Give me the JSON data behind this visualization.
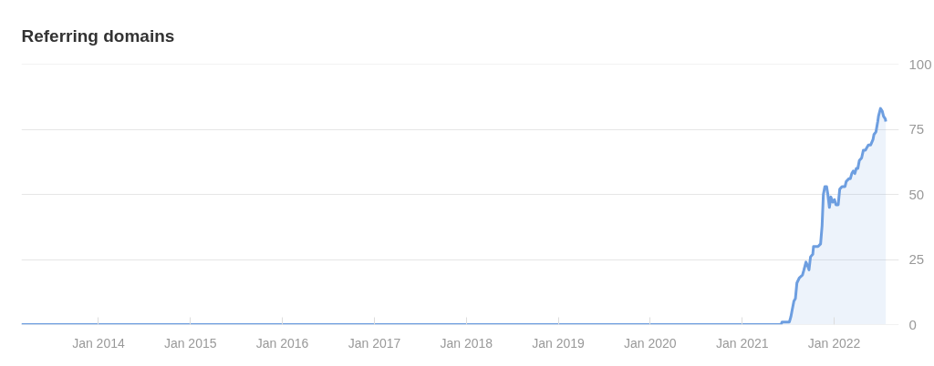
{
  "chart_data": {
    "type": "area",
    "title": "Referring domains",
    "x": [
      "2013-03-01",
      "2021-06-04",
      "2021-06-08",
      "2021-07-07",
      "2021-07-13",
      "2021-07-19",
      "2021-07-25",
      "2021-07-31",
      "2021-08-06",
      "2021-08-16",
      "2021-08-28",
      "2021-09-03",
      "2021-09-11",
      "2021-09-20",
      "2021-09-23",
      "2021-09-29",
      "2021-10-08",
      "2021-10-11",
      "2021-10-29",
      "2021-11-08",
      "2021-11-14",
      "2021-11-19",
      "2021-11-25",
      "2021-12-02",
      "2021-12-07",
      "2021-12-13",
      "2021-12-19",
      "2021-12-26",
      "2022-01-02",
      "2022-01-08",
      "2022-01-17",
      "2022-01-23",
      "2022-02-01",
      "2022-02-13",
      "2022-02-18",
      "2022-02-28",
      "2022-03-06",
      "2022-03-12",
      "2022-03-18",
      "2022-03-24",
      "2022-03-30",
      "2022-04-05",
      "2022-04-11",
      "2022-04-20",
      "2022-04-27",
      "2022-05-05",
      "2022-05-11",
      "2022-05-17",
      "2022-05-26",
      "2022-06-04",
      "2022-06-08",
      "2022-06-16",
      "2022-06-23",
      "2022-06-26",
      "2022-07-04",
      "2022-07-11",
      "2022-07-16",
      "2022-07-23",
      "2022-07-25"
    ],
    "series": [
      {
        "color": "#6d9ee0",
        "values": [
          0,
          0,
          1,
          1,
          3,
          6,
          9,
          10,
          16,
          18,
          19,
          21,
          24,
          22,
          21,
          26,
          27,
          30,
          30,
          31,
          38,
          50,
          53,
          53,
          50,
          45,
          49,
          47,
          48,
          46,
          46,
          52,
          53,
          53,
          55,
          56,
          56,
          58,
          59,
          58,
          60,
          60,
          63,
          64,
          67,
          67,
          68,
          69,
          69,
          71,
          73,
          74,
          78,
          80,
          83,
          82,
          80,
          79,
          78
        ]
      }
    ],
    "xlim": [
      "2013-03-01",
      "2022-09-15"
    ],
    "xticks": [
      {
        "value": "2014-01",
        "label": "Jan 2014"
      },
      {
        "value": "2015-01",
        "label": "Jan 2015"
      },
      {
        "value": "2016-01",
        "label": "Jan 2016"
      },
      {
        "value": "2017-01",
        "label": "Jan 2017"
      },
      {
        "value": "2018-01",
        "label": "Jan 2018"
      },
      {
        "value": "2019-01",
        "label": "Jan 2019"
      },
      {
        "value": "2020-01",
        "label": "Jan 2020"
      },
      {
        "value": "2021-01",
        "label": "Jan 2021"
      },
      {
        "value": "2022-01",
        "label": "Jan 2022"
      }
    ],
    "ylim": [
      0,
      100
    ],
    "yticks": [
      0,
      25,
      50,
      75,
      100
    ],
    "grid": "y"
  }
}
